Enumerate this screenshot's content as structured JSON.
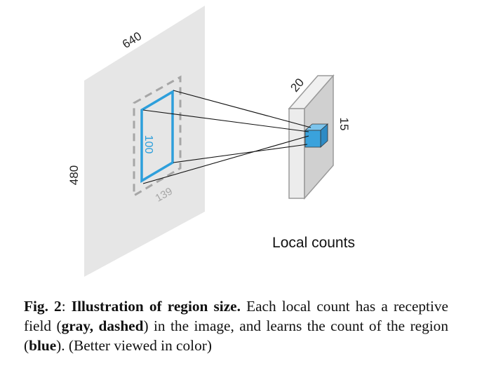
{
  "diagram": {
    "image_width_label": "640",
    "image_height_label": "480",
    "receptive_field_label": "139",
    "region_label": "100",
    "count_map_width_label": "20",
    "count_map_height_label": "15",
    "count_map_caption": "Local counts",
    "colors": {
      "image_plane": "#e6e6e6",
      "receptive_field": "#a6a6a6",
      "region": "#2e9fdb",
      "map_front": "#ececec",
      "map_side": "#d0d0d0",
      "map_border": "#9a9a9a",
      "cell": "#3aa2dc",
      "lines": "#111111",
      "label_text": "#222222"
    }
  },
  "caption": {
    "fig_label": "Fig. 2",
    "colon": ":",
    "title": "Illustration of region size.",
    "t1": "Each local count has a receptive field (",
    "b1": "gray, dashed",
    "t2": ") in the image, and learns the count of the region (",
    "b2": "blue",
    "t3": "). (Better viewed in color)"
  }
}
